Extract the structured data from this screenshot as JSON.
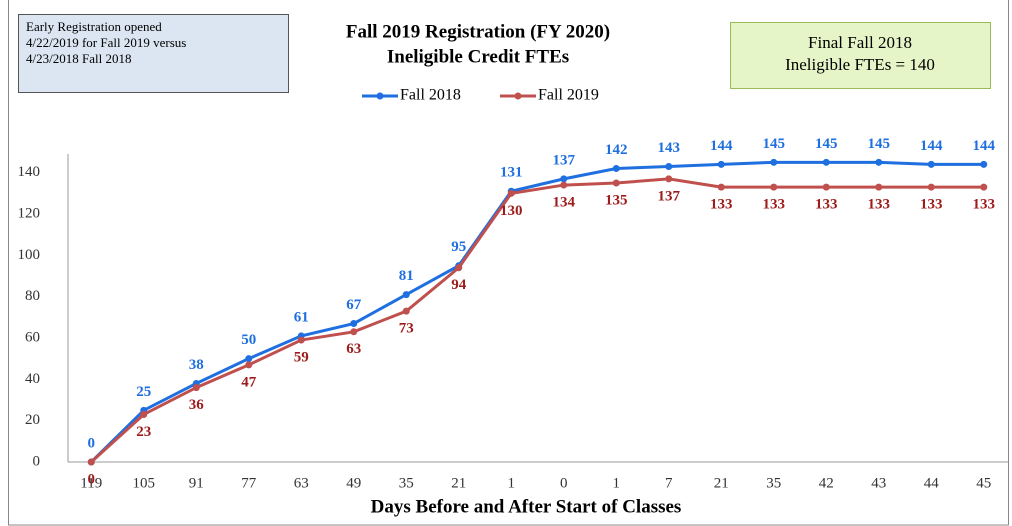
{
  "chart_data": {
    "type": "line",
    "title": "Fall 2019 Registration (FY 2020)",
    "subtitle": "Ineligible Credit FTEs",
    "x_label": "Days Before and After Start of Classes",
    "annotations": [
      {
        "lines": [
          "Early Registration opened",
          "4/22/2019 for Fall 2019 versus",
          "4/23/2018 Fall 2018"
        ]
      },
      {
        "lines": [
          "Final Fall  2018",
          "Ineligible FTEs = 140"
        ]
      }
    ],
    "categories": [
      "119",
      "105",
      "91",
      "77",
      "63",
      "49",
      "35",
      "21",
      "1",
      "0",
      "1",
      "7",
      "21",
      "35",
      "42",
      "43",
      "44",
      "45"
    ],
    "series": [
      {
        "name": "Fall 2018",
        "color": "#1f6fe0",
        "label_color": "#1f6fe0",
        "label_position": "above",
        "values": [
          0,
          25,
          38,
          50,
          61,
          67,
          81,
          95,
          131,
          137,
          142,
          143,
          144,
          145,
          145,
          145,
          144,
          144
        ]
      },
      {
        "name": "Fall 2019",
        "color": "#c0504d",
        "label_color": "#9e1b1b",
        "label_position": "below",
        "values": [
          0,
          23,
          36,
          47,
          59,
          63,
          73,
          94,
          130,
          134,
          135,
          137,
          133,
          133,
          133,
          133,
          133,
          133
        ]
      }
    ],
    "ylim": [
      0,
      150
    ],
    "yticks": [
      0,
      20,
      40,
      60,
      80,
      100,
      120,
      140
    ],
    "grid": false
  }
}
